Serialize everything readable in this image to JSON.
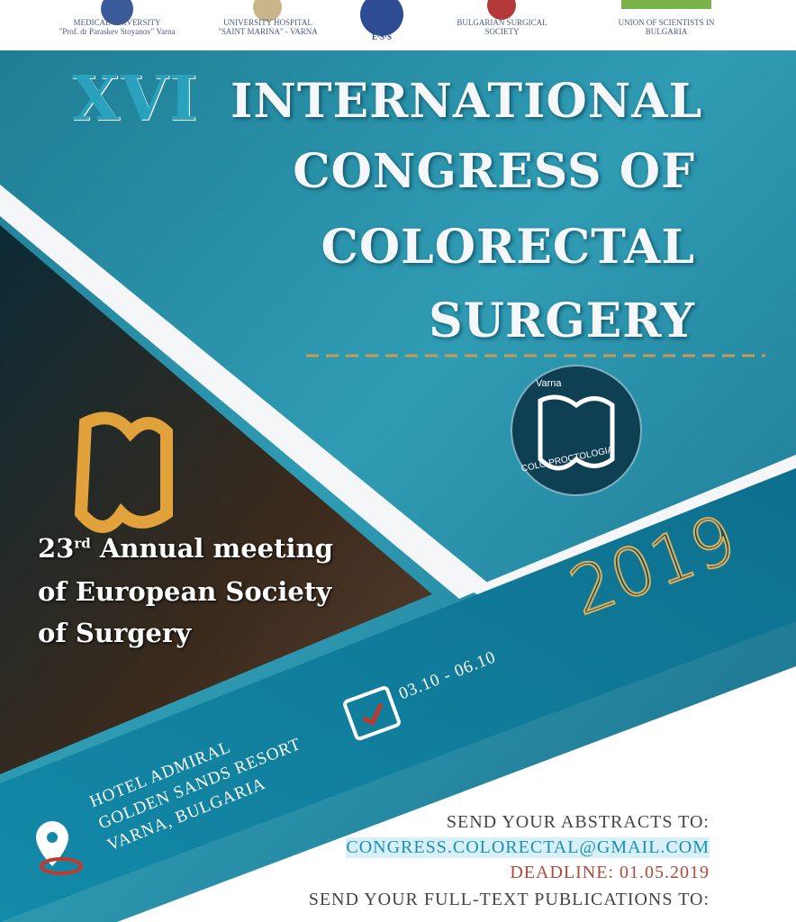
{
  "header": {
    "logos": [
      {
        "line1": "MEDICAL UNIVERSITY",
        "line2": "\"Prof. dr Paraskev Stoyanov\" Varna"
      },
      {
        "line1": "UNIVERSITY HOSPITAL",
        "line2": "\"SAINT MARINA\" - VARNA"
      },
      {
        "line1": "E·S·S"
      },
      {
        "line1": "BULGARIAN SURGICAL",
        "line2": "SOCIETY"
      },
      {
        "line1": "UNION OF SCIENTISTS IN",
        "line2": "BULGARIA"
      }
    ]
  },
  "title": {
    "number": "XVI",
    "line1": "INTERNATIONAL",
    "line2": "CONGRESS OF",
    "line3": "COLORECTAL",
    "line4": "SURGERY"
  },
  "logo": {
    "city": "Varna",
    "name": "COLO PROCTOLOGIA"
  },
  "meeting": {
    "ordinal": "23",
    "suffix": "rd",
    "line1": "Annual meeting",
    "line2": "of European Society",
    "line3": "of Surgery"
  },
  "year": "2019",
  "dates": "03.10 - 06.10",
  "venue": {
    "line1": "HOTEL ADMIRAL",
    "line2": "GOLDEN SANDS RESORT",
    "line3": "VARNA, BULGARIA"
  },
  "footer": {
    "abstracts": "SEND YOUR ABSTRACTS TO:",
    "email": "CONGRESS.COLORECTAL@GMAIL.COM",
    "deadline": "DEADLINE: 01.05.2019",
    "publications": "SEND YOUR FULL-TEXT PUBLICATIONS TO:"
  }
}
